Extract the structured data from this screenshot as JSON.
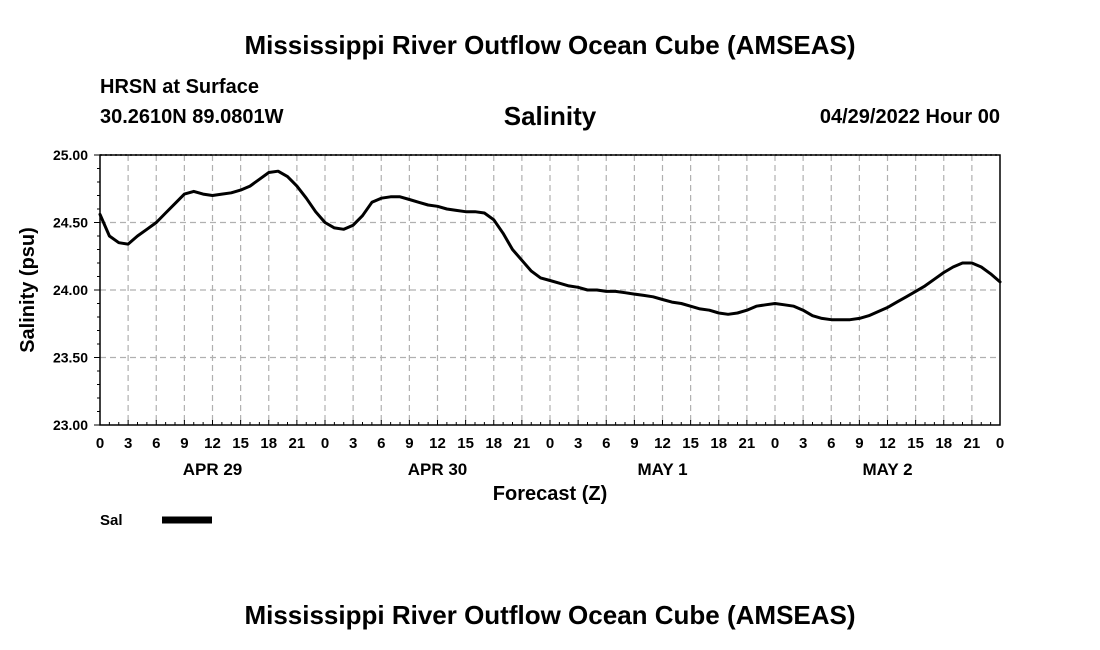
{
  "header": {
    "main_title": "Mississippi River Outflow Ocean Cube (AMSEAS)",
    "station": "HRSN at Surface",
    "coords": "30.2610N  89.0801W",
    "variable": "Salinity",
    "datetime": "04/29/2022 Hour 00"
  },
  "footer": {
    "repeat_title": "Mississippi River Outflow Ocean Cube (AMSEAS)"
  },
  "legend": {
    "label": "Sal",
    "color": "#000000"
  },
  "chart_data": {
    "type": "line",
    "title": "Salinity",
    "xlabel": "Forecast (Z)",
    "ylabel": "Salinity (psu)",
    "ylim": [
      23.0,
      25.0
    ],
    "xlim": [
      0,
      96
    ],
    "y_ticks": [
      "23.00",
      "23.50",
      "24.00",
      "24.50",
      "25.00"
    ],
    "x_tick_labels": [
      "0",
      "3",
      "6",
      "9",
      "12",
      "15",
      "18",
      "21",
      "0",
      "3",
      "6",
      "9",
      "12",
      "15",
      "18",
      "21",
      "0",
      "3",
      "6",
      "9",
      "12",
      "15",
      "18",
      "21",
      "0",
      "3",
      "6",
      "9",
      "12",
      "15",
      "18",
      "21",
      "0"
    ],
    "day_labels": [
      {
        "label": "APR 29",
        "hour": 12
      },
      {
        "label": "APR 30",
        "hour": 36
      },
      {
        "label": "MAY 1",
        "hour": 60
      },
      {
        "label": "MAY 2",
        "hour": 84
      }
    ],
    "grid": true,
    "series": [
      {
        "name": "Sal",
        "x": [
          0,
          1,
          2,
          3,
          4,
          5,
          6,
          7,
          8,
          9,
          10,
          11,
          12,
          13,
          14,
          15,
          16,
          17,
          18,
          19,
          20,
          21,
          22,
          23,
          24,
          25,
          26,
          27,
          28,
          29,
          30,
          31,
          32,
          33,
          34,
          35,
          36,
          37,
          38,
          39,
          40,
          41,
          42,
          43,
          44,
          45,
          46,
          47,
          48,
          49,
          50,
          51,
          52,
          53,
          54,
          55,
          56,
          57,
          58,
          59,
          60,
          61,
          62,
          63,
          64,
          65,
          66,
          67,
          68,
          69,
          70,
          71,
          72,
          73,
          74,
          75,
          76,
          77,
          78,
          79,
          80,
          81,
          82,
          83,
          84,
          85,
          86,
          87,
          88,
          89,
          90,
          91,
          92,
          93,
          94,
          95,
          96
        ],
        "values": [
          24.56,
          24.4,
          24.35,
          24.34,
          24.4,
          24.45,
          24.5,
          24.57,
          24.64,
          24.71,
          24.73,
          24.71,
          24.7,
          24.71,
          24.72,
          24.74,
          24.77,
          24.82,
          24.87,
          24.88,
          24.84,
          24.77,
          24.68,
          24.58,
          24.5,
          24.46,
          24.45,
          24.48,
          24.55,
          24.65,
          24.68,
          24.69,
          24.69,
          24.67,
          24.65,
          24.63,
          24.62,
          24.6,
          24.59,
          24.58,
          24.58,
          24.57,
          24.52,
          24.42,
          24.3,
          24.22,
          24.14,
          24.09,
          24.07,
          24.05,
          24.03,
          24.02,
          24.0,
          24.0,
          23.99,
          23.99,
          23.98,
          23.97,
          23.96,
          23.95,
          23.93,
          23.91,
          23.9,
          23.88,
          23.86,
          23.85,
          23.83,
          23.82,
          23.83,
          23.85,
          23.88,
          23.89,
          23.9,
          23.89,
          23.88,
          23.85,
          23.81,
          23.79,
          23.78,
          23.78,
          23.78,
          23.79,
          23.81,
          23.84,
          23.87,
          23.91,
          23.95,
          23.99,
          24.03,
          24.08,
          24.13,
          24.17,
          24.2,
          24.2,
          24.17,
          24.12,
          24.06
        ]
      }
    ]
  }
}
